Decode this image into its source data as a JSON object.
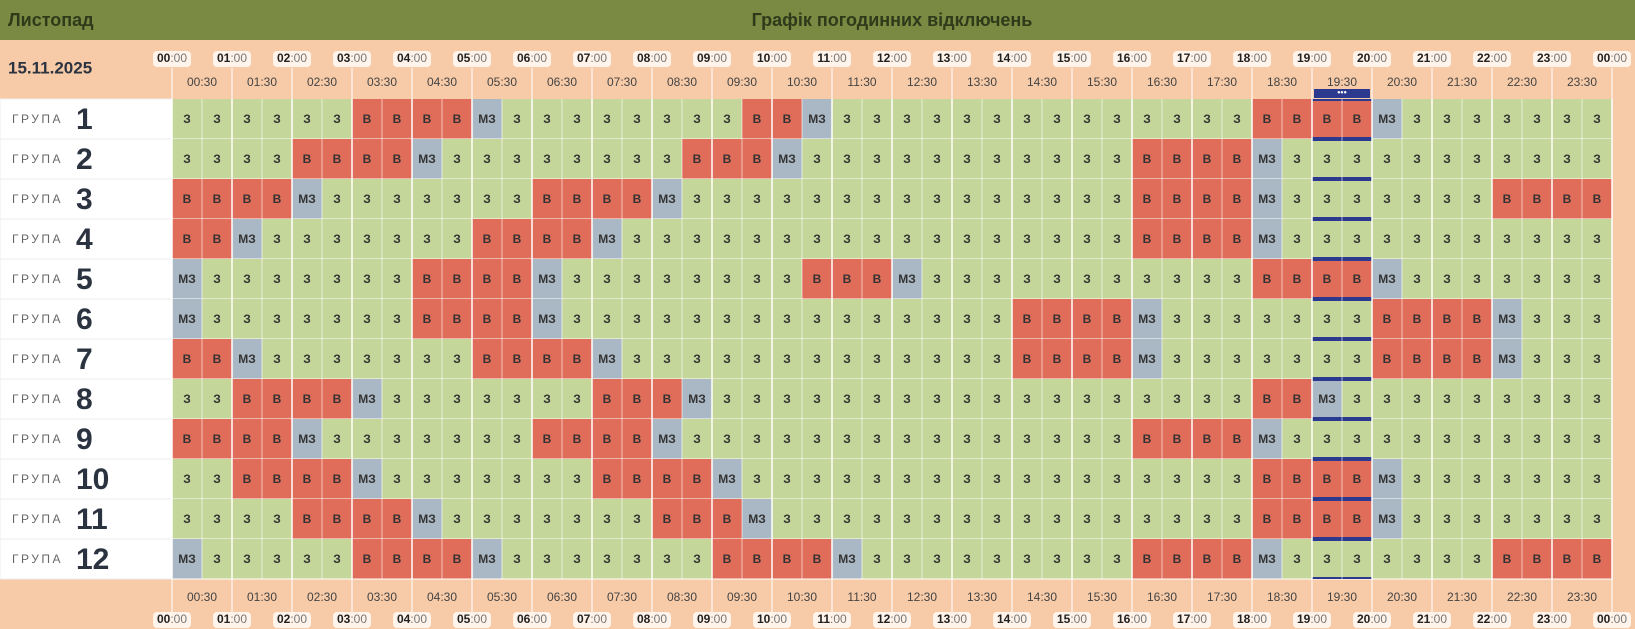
{
  "header": {
    "month": "Листопад",
    "title": "Графік погодинних відключень",
    "date": "15.11.2025"
  },
  "hour_labels": [
    "00",
    "01",
    "02",
    "03",
    "04",
    "05",
    "06",
    "07",
    "08",
    "09",
    "10",
    "11",
    "12",
    "13",
    "14",
    "15",
    "16",
    "17",
    "18",
    "19",
    "20",
    "21",
    "22",
    "23",
    "00"
  ],
  "hour_suffix": ":00",
  "half_labels": [
    "00:30",
    "01:30",
    "02:30",
    "03:30",
    "04:30",
    "05:30",
    "06:30",
    "07:30",
    "08:30",
    "09:30",
    "10:30",
    "11:30",
    "12:30",
    "13:30",
    "14:30",
    "15:30",
    "16:30",
    "17:30",
    "18:30",
    "19:30",
    "20:30",
    "21:30",
    "22:30",
    "23:30"
  ],
  "current_marker": "•••",
  "group_word": "ГРУПА",
  "groups": [
    {
      "number": "1",
      "cells": [
        "З",
        "З",
        "З",
        "З",
        "З",
        "З",
        "В",
        "В",
        "В",
        "В",
        "МЗ",
        "З",
        "З",
        "З",
        "З",
        "З",
        "З",
        "З",
        "З",
        "В",
        "В",
        "МЗ",
        "З",
        "З",
        "З",
        "З",
        "З",
        "З",
        "З",
        "З",
        "З",
        "З",
        "З",
        "З",
        "З",
        "З",
        "В",
        "В",
        "В",
        "В",
        "МЗ",
        "З",
        "З",
        "З",
        "З",
        "З",
        "З",
        "З"
      ]
    },
    {
      "number": "2",
      "cells": [
        "З",
        "З",
        "З",
        "З",
        "В",
        "В",
        "В",
        "В",
        "МЗ",
        "З",
        "З",
        "З",
        "З",
        "З",
        "З",
        "З",
        "З",
        "В",
        "В",
        "В",
        "МЗ",
        "З",
        "З",
        "З",
        "З",
        "З",
        "З",
        "З",
        "З",
        "З",
        "З",
        "З",
        "В",
        "В",
        "В",
        "В",
        "МЗ",
        "З",
        "З",
        "З",
        "З",
        "З",
        "З",
        "З",
        "З",
        "З",
        "З",
        "З"
      ]
    },
    {
      "number": "3",
      "cells": [
        "В",
        "В",
        "В",
        "В",
        "МЗ",
        "З",
        "З",
        "З",
        "З",
        "З",
        "З",
        "З",
        "В",
        "В",
        "В",
        "В",
        "МЗ",
        "З",
        "З",
        "З",
        "З",
        "З",
        "З",
        "З",
        "З",
        "З",
        "З",
        "З",
        "З",
        "З",
        "З",
        "З",
        "В",
        "В",
        "В",
        "В",
        "МЗ",
        "З",
        "З",
        "З",
        "З",
        "З",
        "З",
        "З",
        "В",
        "В",
        "В",
        "В"
      ]
    },
    {
      "number": "4",
      "cells": [
        "В",
        "В",
        "МЗ",
        "З",
        "З",
        "З",
        "З",
        "З",
        "З",
        "З",
        "В",
        "В",
        "В",
        "В",
        "МЗ",
        "З",
        "З",
        "З",
        "З",
        "З",
        "З",
        "З",
        "З",
        "З",
        "З",
        "З",
        "З",
        "З",
        "З",
        "З",
        "З",
        "З",
        "В",
        "В",
        "В",
        "В",
        "МЗ",
        "З",
        "З",
        "З",
        "З",
        "З",
        "З",
        "З",
        "З",
        "З",
        "З",
        "З"
      ]
    },
    {
      "number": "5",
      "cells": [
        "МЗ",
        "З",
        "З",
        "З",
        "З",
        "З",
        "З",
        "З",
        "В",
        "В",
        "В",
        "В",
        "МЗ",
        "З",
        "З",
        "З",
        "З",
        "З",
        "З",
        "З",
        "З",
        "В",
        "В",
        "В",
        "МЗ",
        "З",
        "З",
        "З",
        "З",
        "З",
        "З",
        "З",
        "З",
        "З",
        "З",
        "З",
        "В",
        "В",
        "В",
        "В",
        "МЗ",
        "З",
        "З",
        "З",
        "З",
        "З",
        "З",
        "З"
      ]
    },
    {
      "number": "6",
      "cells": [
        "МЗ",
        "З",
        "З",
        "З",
        "З",
        "З",
        "З",
        "З",
        "В",
        "В",
        "В",
        "В",
        "МЗ",
        "З",
        "З",
        "З",
        "З",
        "З",
        "З",
        "З",
        "З",
        "З",
        "З",
        "З",
        "З",
        "З",
        "З",
        "З",
        "В",
        "В",
        "В",
        "В",
        "МЗ",
        "З",
        "З",
        "З",
        "З",
        "З",
        "З",
        "З",
        "В",
        "В",
        "В",
        "В",
        "МЗ",
        "З",
        "З",
        "З"
      ]
    },
    {
      "number": "7",
      "cells": [
        "В",
        "В",
        "МЗ",
        "З",
        "З",
        "З",
        "З",
        "З",
        "З",
        "З",
        "В",
        "В",
        "В",
        "В",
        "МЗ",
        "З",
        "З",
        "З",
        "З",
        "З",
        "З",
        "З",
        "З",
        "З",
        "З",
        "З",
        "З",
        "З",
        "В",
        "В",
        "В",
        "В",
        "МЗ",
        "З",
        "З",
        "З",
        "З",
        "З",
        "З",
        "З",
        "В",
        "В",
        "В",
        "В",
        "МЗ",
        "З",
        "З",
        "З"
      ]
    },
    {
      "number": "8",
      "cells": [
        "З",
        "З",
        "В",
        "В",
        "В",
        "В",
        "МЗ",
        "З",
        "З",
        "З",
        "З",
        "З",
        "З",
        "З",
        "В",
        "В",
        "В",
        "МЗ",
        "З",
        "З",
        "З",
        "З",
        "З",
        "З",
        "З",
        "З",
        "З",
        "З",
        "З",
        "З",
        "З",
        "З",
        "З",
        "З",
        "З",
        "З",
        "В",
        "В",
        "МЗ",
        "З",
        "З",
        "З",
        "З",
        "З",
        "З",
        "З",
        "З",
        "З"
      ]
    },
    {
      "number": "9",
      "cells": [
        "В",
        "В",
        "В",
        "В",
        "МЗ",
        "З",
        "З",
        "З",
        "З",
        "З",
        "З",
        "З",
        "В",
        "В",
        "В",
        "В",
        "МЗ",
        "З",
        "З",
        "З",
        "З",
        "З",
        "З",
        "З",
        "З",
        "З",
        "З",
        "З",
        "З",
        "З",
        "З",
        "З",
        "В",
        "В",
        "В",
        "В",
        "МЗ",
        "З",
        "З",
        "З",
        "З",
        "З",
        "З",
        "З",
        "З",
        "З",
        "З",
        "З"
      ]
    },
    {
      "number": "10",
      "cells": [
        "З",
        "З",
        "В",
        "В",
        "В",
        "В",
        "МЗ",
        "З",
        "З",
        "З",
        "З",
        "З",
        "З",
        "З",
        "В",
        "В",
        "В",
        "В",
        "МЗ",
        "З",
        "З",
        "З",
        "З",
        "З",
        "З",
        "З",
        "З",
        "З",
        "З",
        "З",
        "З",
        "З",
        "З",
        "З",
        "З",
        "З",
        "В",
        "В",
        "В",
        "В",
        "МЗ",
        "З",
        "З",
        "З",
        "З",
        "З",
        "З",
        "З"
      ]
    },
    {
      "number": "11",
      "cells": [
        "З",
        "З",
        "З",
        "З",
        "В",
        "В",
        "В",
        "В",
        "МЗ",
        "З",
        "З",
        "З",
        "З",
        "З",
        "З",
        "З",
        "В",
        "В",
        "В",
        "МЗ",
        "З",
        "З",
        "З",
        "З",
        "З",
        "З",
        "З",
        "З",
        "З",
        "З",
        "З",
        "З",
        "З",
        "З",
        "З",
        "З",
        "В",
        "В",
        "В",
        "В",
        "МЗ",
        "З",
        "З",
        "З",
        "З",
        "З",
        "З",
        "З"
      ]
    },
    {
      "number": "12",
      "cells": [
        "МЗ",
        "З",
        "З",
        "З",
        "З",
        "З",
        "В",
        "В",
        "В",
        "В",
        "МЗ",
        "З",
        "З",
        "З",
        "З",
        "З",
        "З",
        "З",
        "В",
        "В",
        "В",
        "В",
        "МЗ",
        "З",
        "З",
        "З",
        "З",
        "З",
        "З",
        "З",
        "З",
        "З",
        "В",
        "В",
        "В",
        "В",
        "МЗ",
        "З",
        "З",
        "З",
        "З",
        "З",
        "З",
        "З",
        "В",
        "В",
        "В",
        "В"
      ]
    }
  ]
}
